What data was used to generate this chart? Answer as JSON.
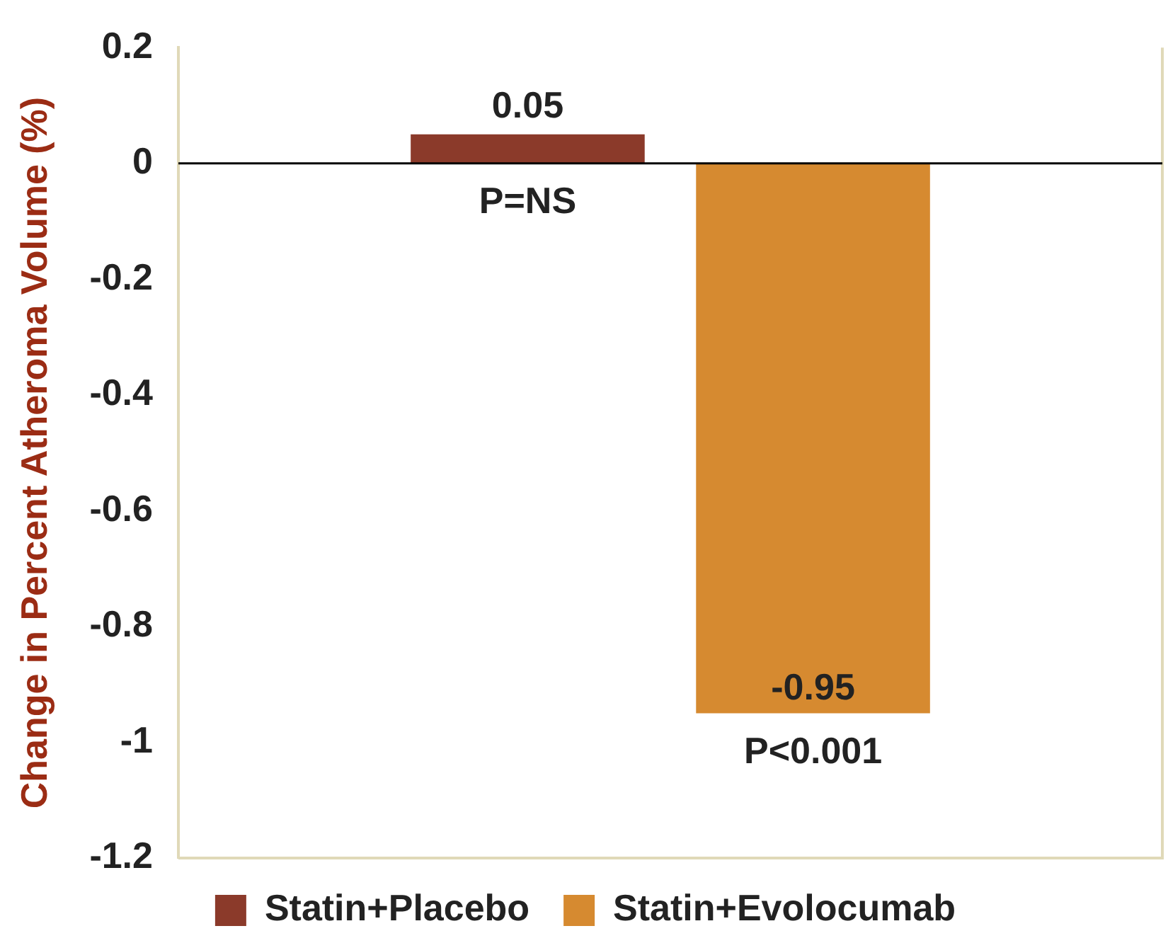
{
  "chart_data": {
    "type": "bar",
    "ylabel": "Change in Percent Atheroma Volume (%)",
    "categories": [
      null
    ],
    "series": [
      {
        "name": "Statin+Placebo",
        "color": "#8b3a2a",
        "values": [
          0.05
        ]
      },
      {
        "name": "Statin+Evolocumab",
        "color": "#d68a30",
        "values": [
          -0.95
        ]
      }
    ],
    "ylim": [
      -1.2,
      0.2
    ],
    "yticks": [
      -1.2,
      -1,
      -0.8,
      -0.6,
      -0.4,
      -0.2,
      0,
      0.2
    ],
    "grid": false,
    "legend": "bottom",
    "data_labels": true,
    "ref_lines": [
      {
        "axis": "y",
        "value": 0,
        "color": "#000000"
      }
    ],
    "annotations": [
      "P=NS",
      "P<0.001"
    ]
  }
}
